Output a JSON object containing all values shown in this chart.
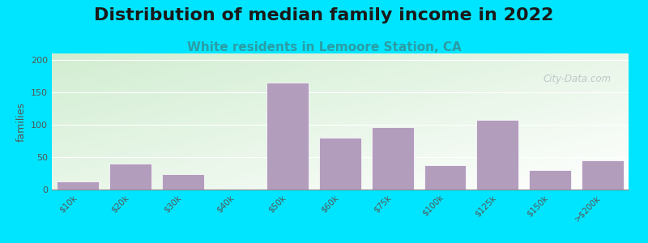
{
  "title": "Distribution of median family income in 2022",
  "subtitle": "White residents in Lemoore Station, CA",
  "categories": [
    "$10k",
    "$20k",
    "$30k",
    "$40k",
    "$50k",
    "$60k",
    "$75k",
    "$100k",
    "$125k",
    "$150k",
    ">$200k"
  ],
  "values": [
    13,
    40,
    24,
    0,
    165,
    80,
    96,
    38,
    108,
    30,
    45
  ],
  "bar_color": "#b39dbd",
  "ylabel": "families",
  "ylim": [
    0,
    210
  ],
  "yticks": [
    0,
    50,
    100,
    150,
    200
  ],
  "outer_bg": "#00e5ff",
  "title_fontsize": 16,
  "subtitle_fontsize": 11,
  "subtitle_color": "#2a9da5",
  "watermark_text": "City-Data.com",
  "watermark_color": "#b0b8c0"
}
